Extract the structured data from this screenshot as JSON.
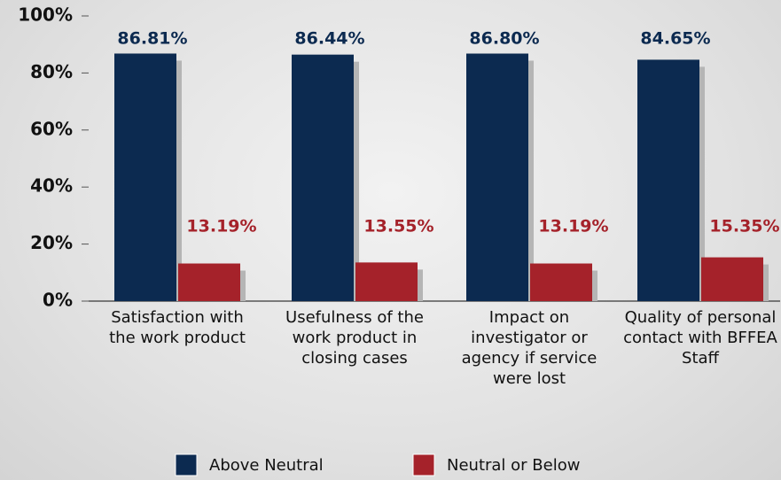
{
  "chart_data": {
    "type": "bar",
    "categories": [
      "Satisfaction with the work product",
      "Usefulness of the work product in closing cases",
      "Impact on investigator or agency if service were lost",
      "Quality of personal contact with BFFEA Staff"
    ],
    "series": [
      {
        "name": "Above Neutral",
        "color": "#0c2a50",
        "values": [
          86.81,
          86.44,
          86.8,
          84.65
        ],
        "value_labels": [
          "86.81%",
          "86.44%",
          "86.80%",
          "84.65%"
        ]
      },
      {
        "name": "Neutral or Below",
        "color": "#a5222a",
        "values": [
          13.19,
          13.55,
          13.19,
          15.35
        ],
        "value_labels": [
          "13.19%",
          "13.55%",
          "13.19%",
          "15.35%"
        ]
      }
    ],
    "ylim": [
      0,
      100
    ],
    "yticks": [
      {
        "value": 0,
        "label": "0%"
      },
      {
        "value": 20,
        "label": "20%"
      },
      {
        "value": 40,
        "label": "40%"
      },
      {
        "value": 60,
        "label": "60%"
      },
      {
        "value": 80,
        "label": "80%"
      },
      {
        "value": 100,
        "label": "100%"
      }
    ],
    "legend": "bottom"
  }
}
